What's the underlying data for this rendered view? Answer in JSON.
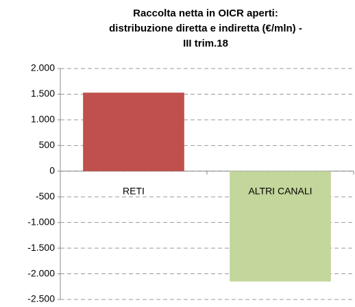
{
  "chart_data": {
    "type": "bar",
    "title": [
      "Raccolta netta in OICR aperti:",
      "distribuzione diretta e indiretta (€/mln) -",
      "III trim.18"
    ],
    "categories": [
      "RETI",
      "ALTRI CANALI"
    ],
    "values": [
      1530,
      -2150
    ],
    "colors": [
      "#c0504d",
      "#c3d69b"
    ],
    "ylim": [
      -2500,
      2000
    ],
    "yticks": [
      {
        "value": -2500,
        "label": "-2.500"
      },
      {
        "value": -2000,
        "label": "-2.000"
      },
      {
        "value": -1500,
        "label": "-1.500"
      },
      {
        "value": -1000,
        "label": "-1.000"
      },
      -500,
      0,
      500,
      {
        "value": 1000,
        "label": "1.000"
      },
      {
        "value": 1500,
        "label": "1.500"
      },
      {
        "value": 2000,
        "label": "2.000"
      }
    ],
    "grid": true
  }
}
